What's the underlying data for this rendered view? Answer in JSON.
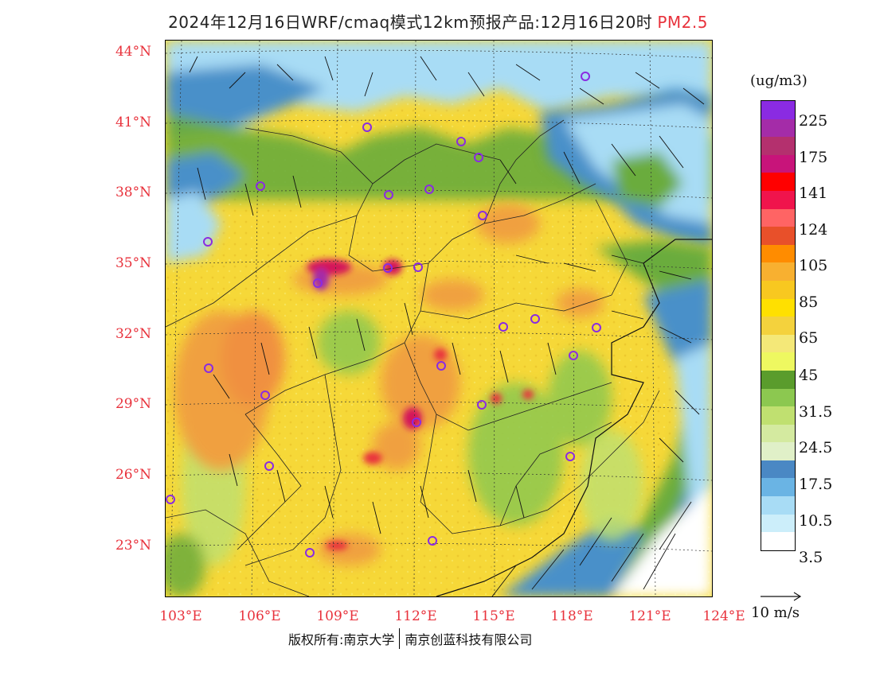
{
  "title": {
    "main": "2024年12月16日WRF/cmaq模式12km预报产品:12月16日20时",
    "product": "PM2.5"
  },
  "map": {
    "lat_labels": [
      "44°N",
      "41°N",
      "38°N",
      "35°N",
      "32°N",
      "29°N",
      "26°N",
      "23°N"
    ],
    "lon_labels": [
      "103°E",
      "106°E",
      "109°E",
      "112°E",
      "115°E",
      "118°E",
      "121°E",
      "124°E"
    ],
    "colors": {
      "sea_blue": "#4a90c9",
      "light_blue": "#a8dcf5",
      "green": "#6aac3c",
      "yellow": "#f8e030",
      "orange": "#f0a040",
      "hotspot": "#d4145a"
    }
  },
  "legend": {
    "unit": "(ug/m3)",
    "labels": [
      "225",
      "175",
      "141",
      "124",
      "105",
      "85",
      "65",
      "45",
      "31.5",
      "24.5",
      "17.5",
      "10.5",
      "3.5"
    ],
    "colors": [
      "#8a2be2",
      "#a42ca8",
      "#b4306e",
      "#c8147a",
      "#ff0000",
      "#f0144c",
      "#ff6464",
      "#e8502a",
      "#ff8c00",
      "#f8b030",
      "#f8c820",
      "#ffe000",
      "#f4d23d",
      "#f4e878",
      "#eef860",
      "#5a9c2c",
      "#8cc850",
      "#c0e070",
      "#d4eaa0",
      "#e0f0c8",
      "#4a88c4",
      "#6ab4e4",
      "#a8dcf5",
      "#cceefa",
      "#ffffff"
    ]
  },
  "wind_reference": {
    "label": "10 m/s"
  },
  "footer": {
    "copyright": "版权所有:南京大学",
    "company": "南京创蓝科技有限公司"
  }
}
